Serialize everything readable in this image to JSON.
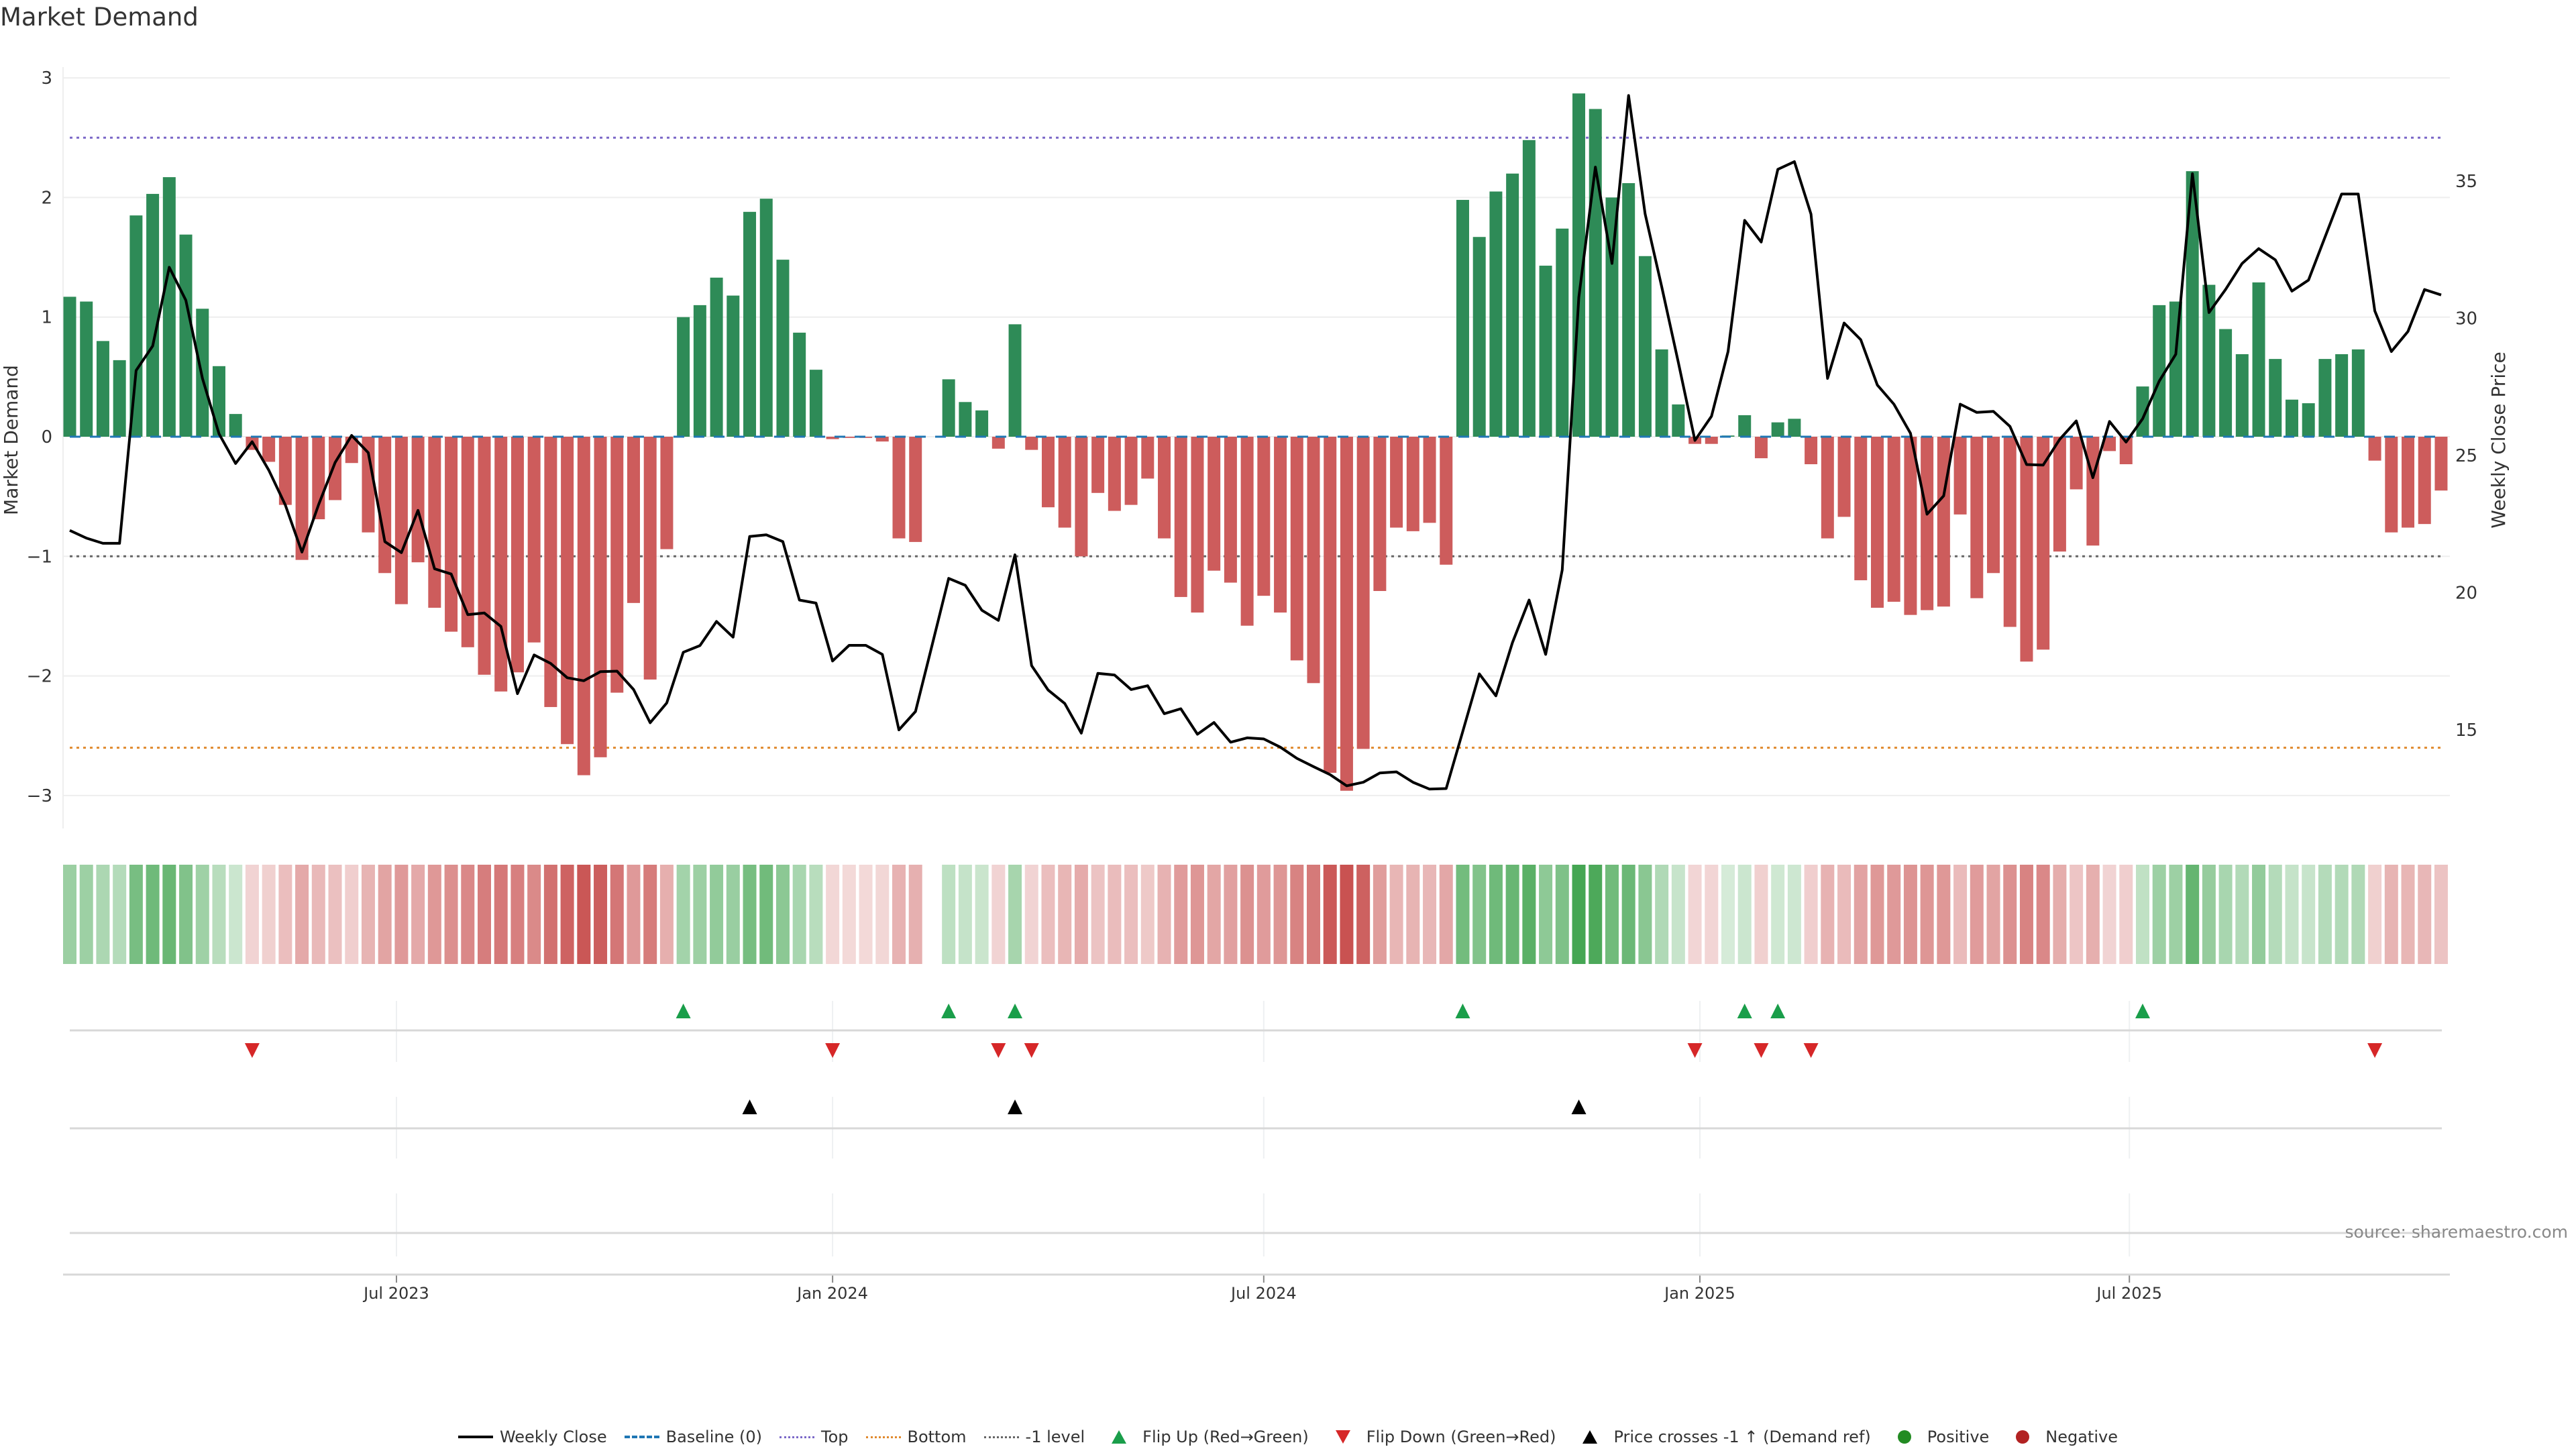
{
  "title": "Market Demand",
  "source": "source: sharemaestro.com",
  "colors": {
    "positive_bar": "#2e8b57",
    "negative_bar": "#cd5c5c",
    "price": "#000000",
    "baseline": "#1f77b4",
    "top": "#7b68c8",
    "bottom": "#e08a2e",
    "minus_one": "#666666",
    "flip_up": "#1a9e4a",
    "flip_down": "#d62728",
    "cross": "#000000",
    "positive_dot": "#228b22",
    "negative_dot": "#b22222"
  },
  "legend": [
    {
      "label": "Weekly Close",
      "kind": "line",
      "color": "#000000"
    },
    {
      "label": "Baseline (0)",
      "kind": "dash",
      "color": "#1f77b4"
    },
    {
      "label": "Top",
      "kind": "dot",
      "color": "#7b68c8"
    },
    {
      "label": "Bottom",
      "kind": "dot",
      "color": "#e08a2e"
    },
    {
      "label": "-1 level",
      "kind": "dot",
      "color": "#666666"
    },
    {
      "label": "Flip Up (Red→Green)",
      "kind": "up",
      "color": "#1a9e4a"
    },
    {
      "label": "Flip Down (Green→Red)",
      "kind": "down",
      "color": "#d62728"
    },
    {
      "label": "Price crosses -1 ↑ (Demand ref)",
      "kind": "up",
      "color": "#000000"
    },
    {
      "label": "Positive",
      "kind": "circle",
      "color": "#228b22"
    },
    {
      "label": "Negative",
      "kind": "circle",
      "color": "#b22222"
    }
  ],
  "chart_data": {
    "type": "bar",
    "title": "Market Demand",
    "ylabel": "Market Demand",
    "y2label": "Weekly Close Price",
    "ylim": [
      -3.25,
      3.25
    ],
    "y2lim": [
      12,
      38.5
    ],
    "yticks": [
      {
        "v": 3,
        "label": "3"
      },
      {
        "v": 2,
        "label": "2"
      },
      {
        "v": 1,
        "label": "1"
      },
      {
        "v": 0,
        "label": "0"
      },
      {
        "v": -1,
        "label": "−1"
      },
      {
        "v": -2,
        "label": "−2"
      },
      {
        "v": -3,
        "label": "−3"
      }
    ],
    "y2ticks": [
      {
        "v": 35,
        "label": "35"
      },
      {
        "v": 30,
        "label": "30"
      },
      {
        "v": 25,
        "label": "25"
      },
      {
        "v": 20,
        "label": "20"
      },
      {
        "v": 15,
        "label": "15"
      }
    ],
    "xticks": [
      {
        "week": 20.7,
        "label": "Jul 2023"
      },
      {
        "week": 47,
        "label": "Jan 2024"
      },
      {
        "week": 73,
        "label": "Jul 2024"
      },
      {
        "week": 99.3,
        "label": "Jan 2025"
      },
      {
        "week": 125.2,
        "label": "Jul 2025"
      }
    ],
    "reference_lines": {
      "baseline": 0,
      "top": 2.5,
      "bottom": -2.6,
      "minus_one": -1
    },
    "demand": [
      1.17,
      1.13,
      0.8,
      0.64,
      1.85,
      2.03,
      2.17,
      1.69,
      1.07,
      0.59,
      0.19,
      -0.11,
      -0.21,
      -0.57,
      -1.03,
      -0.69,
      -0.53,
      -0.22,
      -0.8,
      -1.14,
      -1.4,
      -1.05,
      -1.43,
      -1.63,
      -1.76,
      -1.99,
      -2.13,
      -1.97,
      -1.72,
      -2.26,
      -2.57,
      -2.83,
      -2.68,
      -2.14,
      -1.39,
      -2.03,
      -0.94,
      1.0,
      1.1,
      1.33,
      1.18,
      1.88,
      1.99,
      1.48,
      0.87,
      0.56,
      -0.02,
      -0.01,
      -0.01,
      -0.04,
      -0.85,
      -0.88,
      0,
      0.48,
      0.29,
      0.22,
      -0.1,
      0.94,
      -0.11,
      -0.59,
      -0.76,
      -1.0,
      -0.47,
      -0.62,
      -0.57,
      -0.35,
      -0.85,
      -1.34,
      -1.47,
      -1.12,
      -1.22,
      -1.58,
      -1.33,
      -1.47,
      -1.87,
      -2.06,
      -2.81,
      -2.96,
      -2.61,
      -1.29,
      -0.76,
      -0.79,
      -0.72,
      -1.07,
      1.98,
      1.67,
      2.05,
      2.2,
      2.48,
      1.43,
      1.74,
      2.87,
      2.74,
      2.0,
      2.12,
      1.51,
      0.73,
      0.27,
      -0.06,
      -0.06,
      0.01,
      0.18,
      -0.18,
      0.12,
      0.15,
      -0.23,
      -0.85,
      -0.67,
      -1.2,
      -1.43,
      -1.38,
      -1.49,
      -1.45,
      -1.42,
      -0.65,
      -1.35,
      -1.14,
      -1.59,
      -1.88,
      -1.78,
      -0.96,
      -0.44,
      -0.91,
      -0.12,
      -0.23,
      0.42,
      1.1,
      1.13,
      2.22,
      1.27,
      0.9,
      0.69,
      1.29,
      0.65,
      0.31,
      0.28,
      0.65,
      0.69,
      0.73,
      -0.2,
      -0.8,
      -0.76,
      -0.73,
      -0.45
    ],
    "weekly_close": [
      22.27,
      21.99,
      21.8,
      21.8,
      28.1,
      28.99,
      31.86,
      30.66,
      27.81,
      25.79,
      24.71,
      25.5,
      24.47,
      23.19,
      21.48,
      23.2,
      24.74,
      25.73,
      25.1,
      21.86,
      21.46,
      23.0,
      20.87,
      20.68,
      19.2,
      19.26,
      18.77,
      16.32,
      17.73,
      17.42,
      16.9,
      16.79,
      17.12,
      17.14,
      16.47,
      15.26,
      15.98,
      17.83,
      18.07,
      18.95,
      18.38,
      22.05,
      22.11,
      21.86,
      19.73,
      19.62,
      17.51,
      18.08,
      18.08,
      17.75,
      15.0,
      15.67,
      18.08,
      20.52,
      20.27,
      19.36,
      18.99,
      21.38,
      17.34,
      16.45,
      15.96,
      14.88,
      17.06,
      17.0,
      16.47,
      16.61,
      15.59,
      15.77,
      14.84,
      15.27,
      14.55,
      14.71,
      14.67,
      14.37,
      13.96,
      13.66,
      13.37,
      12.96,
      13.09,
      13.43,
      13.47,
      13.09,
      12.84,
      12.86,
      14.94,
      17.04,
      16.24,
      18.18,
      19.73,
      17.75,
      20.83,
      30.76,
      35.51,
      32.0,
      38.12,
      33.8,
      31.15,
      28.4,
      25.55,
      26.43,
      28.79,
      33.57,
      32.78,
      35.43,
      35.71,
      33.8,
      27.81,
      29.83,
      29.22,
      27.57,
      26.87,
      25.81,
      22.86,
      23.53,
      26.87,
      26.57,
      26.61,
      26.06,
      24.67,
      24.65,
      25.59,
      26.26,
      24.19,
      26.24,
      25.49,
      26.34,
      27.71,
      28.69,
      35.27,
      30.21,
      31.05,
      32.0,
      32.54,
      32.13,
      30.99,
      31.39,
      32.96,
      34.53,
      34.53,
      30.27,
      28.79,
      29.52,
      31.05,
      30.85
    ],
    "flip_up_weeks": [
      38,
      54,
      58,
      85,
      102,
      104,
      126
    ],
    "flip_down_weeks": [
      12,
      47,
      57,
      59,
      99,
      103,
      106,
      140
    ],
    "price_cross_weeks": [
      42,
      58,
      92
    ],
    "legend_position": "bottom-center"
  }
}
